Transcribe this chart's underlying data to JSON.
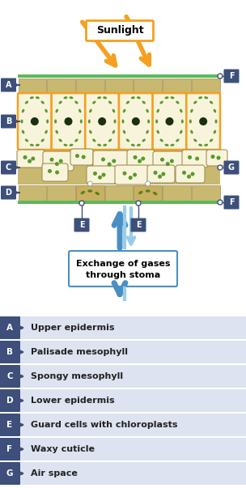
{
  "bg_color": "#ffffff",
  "dark_blue": "#3d4f7a",
  "label_bg": "#dde3f0",
  "tan": "#c8b870",
  "tan_dark": "#a89850",
  "green_line": "#5cb85c",
  "orange": "#f5a020",
  "cell_cream": "#f8f4dc",
  "chloro_green": "#5a9a2a",
  "dark_nucleus": "#1a3010",
  "blue_arrow": "#4a8fc4",
  "light_blue": "#9acce8",
  "spongy_bg": "#c8b870",
  "title": "Sunlight",
  "gas_text1": "Exchange of gases",
  "gas_text2": "through stoma",
  "legend_labels": [
    [
      "A",
      "Upper epidermis"
    ],
    [
      "B",
      "Palisade mesophyll"
    ],
    [
      "C",
      "Spongy mesophyll"
    ],
    [
      "D",
      "Lower epidermis"
    ],
    [
      "E",
      "Guard cells with chloroplasts"
    ],
    [
      "F",
      "Waxy cuticle"
    ],
    [
      "G",
      "Air space"
    ]
  ],
  "fig_w": 3.04,
  "fig_h": 6.03,
  "dpi": 100
}
